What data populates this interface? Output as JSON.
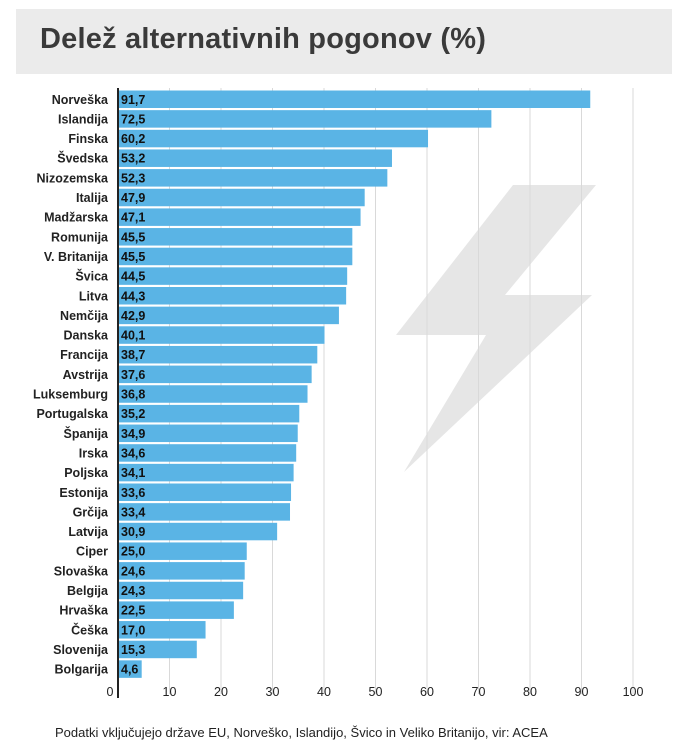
{
  "header": {
    "title": "Delež alternativnih pogonov (%)"
  },
  "footnote": "Podatki vključujejo države EU, Norveško, Islandijo, Švico in Veliko Britanijo, vir: ACEA",
  "colors": {
    "bar": "#5ab4e5",
    "grid": "#d9d9d9",
    "axis": "#222222",
    "bolt": "#e6e6e6",
    "banner": "#ebebeb"
  },
  "decoration": {
    "icon": "lightning-bolt-icon"
  },
  "chart_data": {
    "type": "bar",
    "orientation": "horizontal",
    "title": "Delež alternativnih pogonov (%)",
    "xlim": [
      0,
      100
    ],
    "xticks": [
      0,
      10,
      20,
      30,
      40,
      50,
      60,
      70,
      80,
      90,
      100
    ],
    "grid": true,
    "categories": [
      "Norveška",
      "Islandija",
      "Finska",
      "Švedska",
      "Nizozemska",
      "Italija",
      "Madžarska",
      "Romunija",
      "V. Britanija",
      "Švica",
      "Litva",
      "Nemčija",
      "Danska",
      "Francija",
      "Avstrija",
      "Luksemburg",
      "Portugalska",
      "Španija",
      "Irska",
      "Poljska",
      "Estonija",
      "Grčija",
      "Latvija",
      "Ciper",
      "Slovaška",
      "Belgija",
      "Hrvaška",
      "Češka",
      "Slovenija",
      "Bolgarija"
    ],
    "values": [
      91.7,
      72.5,
      60.2,
      53.2,
      52.3,
      47.9,
      47.1,
      45.5,
      45.5,
      44.5,
      44.3,
      42.9,
      40.1,
      38.7,
      37.6,
      36.8,
      35.2,
      34.9,
      34.6,
      34.1,
      33.6,
      33.4,
      30.9,
      25.0,
      24.6,
      24.3,
      22.5,
      17.0,
      15.3,
      4.6
    ],
    "value_labels": [
      "91,7",
      "72,5",
      "60,2",
      "53,2",
      "52,3",
      "47,9",
      "47,1",
      "45,5",
      "45,5",
      "44,5",
      "44,3",
      "42,9",
      "40,1",
      "38,7",
      "37,6",
      "36,8",
      "35,2",
      "34,9",
      "34,6",
      "34,1",
      "33,6",
      "33,4",
      "30,9",
      "25,0",
      "24,6",
      "24,3",
      "22,5",
      "17,0",
      "15,3",
      "4,6"
    ]
  }
}
